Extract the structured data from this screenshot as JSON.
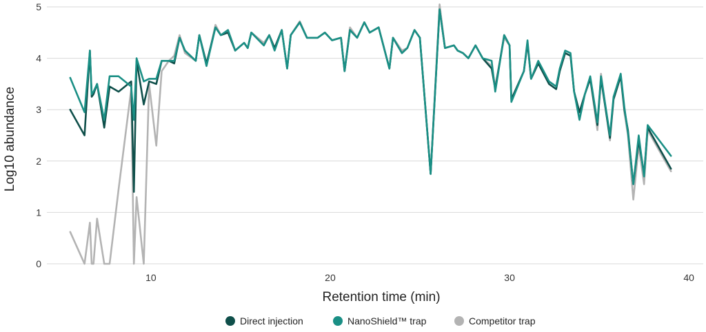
{
  "chart_data": {
    "type": "line",
    "xlabel": "Retention time (min)",
    "ylabel": "Log10 abundance",
    "xlim": [
      4.2,
      40.8
    ],
    "ylim": [
      0,
      5
    ],
    "xticks": [
      10,
      20,
      30,
      40
    ],
    "yticks": [
      0,
      1,
      2,
      3,
      4,
      5
    ],
    "grid": "horizontal",
    "legend_position": "bottom-center",
    "series": [
      {
        "name": "Direct injection",
        "color": "#0f4f4a",
        "points": [
          [
            5.5,
            3.0
          ],
          [
            6.3,
            2.5
          ],
          [
            6.6,
            4.15
          ],
          [
            6.7,
            3.25
          ],
          [
            6.8,
            3.3
          ],
          [
            7.0,
            3.5
          ],
          [
            7.4,
            2.65
          ],
          [
            7.7,
            3.45
          ],
          [
            8.2,
            3.35
          ],
          [
            8.9,
            3.55
          ],
          [
            9.05,
            1.4
          ],
          [
            9.2,
            3.95
          ],
          [
            9.6,
            3.1
          ],
          [
            9.9,
            3.55
          ],
          [
            10.3,
            3.5
          ],
          [
            10.6,
            3.95
          ],
          [
            11.0,
            3.95
          ],
          [
            11.3,
            3.9
          ],
          [
            11.6,
            4.4
          ],
          [
            11.9,
            4.15
          ],
          [
            12.5,
            3.95
          ],
          [
            12.7,
            4.45
          ],
          [
            13.1,
            3.9
          ],
          [
            13.6,
            4.6
          ],
          [
            13.9,
            4.45
          ],
          [
            14.3,
            4.5
          ],
          [
            14.7,
            4.15
          ],
          [
            15.2,
            4.3
          ],
          [
            15.4,
            4.2
          ],
          [
            15.6,
            4.5
          ],
          [
            16.3,
            4.25
          ],
          [
            16.6,
            4.45
          ],
          [
            16.9,
            4.2
          ],
          [
            17.3,
            4.55
          ],
          [
            17.6,
            3.8
          ],
          [
            17.8,
            4.45
          ],
          [
            18.3,
            4.7
          ],
          [
            18.7,
            4.4
          ],
          [
            19.3,
            4.4
          ],
          [
            19.7,
            4.5
          ],
          [
            20.1,
            4.35
          ],
          [
            20.6,
            4.4
          ],
          [
            20.8,
            3.75
          ],
          [
            21.1,
            4.55
          ],
          [
            21.5,
            4.4
          ],
          [
            21.9,
            4.7
          ],
          [
            22.2,
            4.5
          ],
          [
            22.7,
            4.6
          ],
          [
            23.3,
            3.8
          ],
          [
            23.5,
            4.4
          ],
          [
            24.0,
            4.1
          ],
          [
            24.3,
            4.2
          ],
          [
            24.7,
            4.55
          ],
          [
            25.0,
            4.4
          ],
          [
            25.6,
            1.75
          ],
          [
            26.1,
            4.95
          ],
          [
            26.4,
            4.2
          ],
          [
            26.9,
            4.25
          ],
          [
            27.1,
            4.15
          ],
          [
            27.4,
            4.1
          ],
          [
            27.7,
            4.0
          ],
          [
            28.1,
            4.25
          ],
          [
            28.5,
            4.0
          ],
          [
            29.0,
            3.8
          ],
          [
            29.2,
            3.4
          ],
          [
            29.7,
            4.45
          ],
          [
            30.0,
            4.25
          ],
          [
            30.1,
            3.2
          ],
          [
            30.8,
            3.75
          ],
          [
            31.0,
            4.3
          ],
          [
            31.2,
            3.6
          ],
          [
            31.6,
            3.9
          ],
          [
            32.2,
            3.5
          ],
          [
            32.6,
            3.4
          ],
          [
            32.8,
            3.75
          ],
          [
            33.1,
            4.1
          ],
          [
            33.4,
            4.05
          ],
          [
            33.6,
            3.35
          ],
          [
            33.9,
            2.95
          ],
          [
            34.2,
            3.3
          ],
          [
            34.5,
            3.6
          ],
          [
            34.9,
            2.7
          ],
          [
            35.1,
            3.6
          ],
          [
            35.6,
            2.45
          ],
          [
            35.8,
            3.2
          ],
          [
            36.2,
            3.65
          ],
          [
            36.4,
            3.0
          ],
          [
            36.6,
            2.6
          ],
          [
            36.9,
            1.55
          ],
          [
            37.2,
            2.4
          ],
          [
            37.5,
            1.75
          ],
          [
            37.7,
            2.65
          ],
          [
            39.0,
            1.85
          ]
        ]
      },
      {
        "name": "NanoShield™ trap",
        "color": "#1a8f85",
        "points": [
          [
            5.5,
            3.62
          ],
          [
            6.3,
            2.95
          ],
          [
            6.6,
            4.15
          ],
          [
            6.7,
            3.3
          ],
          [
            6.8,
            3.35
          ],
          [
            7.0,
            3.5
          ],
          [
            7.4,
            2.8
          ],
          [
            7.7,
            3.65
          ],
          [
            8.2,
            3.65
          ],
          [
            8.9,
            3.45
          ],
          [
            9.05,
            2.8
          ],
          [
            9.2,
            4.0
          ],
          [
            9.6,
            3.55
          ],
          [
            9.9,
            3.6
          ],
          [
            10.3,
            3.6
          ],
          [
            10.6,
            3.95
          ],
          [
            11.0,
            3.95
          ],
          [
            11.3,
            3.95
          ],
          [
            11.6,
            4.4
          ],
          [
            11.9,
            4.15
          ],
          [
            12.5,
            3.95
          ],
          [
            12.7,
            4.45
          ],
          [
            13.1,
            3.85
          ],
          [
            13.6,
            4.6
          ],
          [
            13.9,
            4.45
          ],
          [
            14.3,
            4.55
          ],
          [
            14.7,
            4.15
          ],
          [
            15.2,
            4.3
          ],
          [
            15.4,
            4.2
          ],
          [
            15.6,
            4.5
          ],
          [
            16.3,
            4.25
          ],
          [
            16.6,
            4.45
          ],
          [
            16.9,
            4.15
          ],
          [
            17.3,
            4.55
          ],
          [
            17.6,
            3.8
          ],
          [
            17.8,
            4.45
          ],
          [
            18.3,
            4.7
          ],
          [
            18.7,
            4.4
          ],
          [
            19.3,
            4.4
          ],
          [
            19.7,
            4.5
          ],
          [
            20.1,
            4.35
          ],
          [
            20.6,
            4.4
          ],
          [
            20.8,
            3.75
          ],
          [
            21.1,
            4.55
          ],
          [
            21.5,
            4.4
          ],
          [
            21.9,
            4.7
          ],
          [
            22.2,
            4.5
          ],
          [
            22.7,
            4.6
          ],
          [
            23.3,
            3.8
          ],
          [
            23.5,
            4.4
          ],
          [
            24.0,
            4.1
          ],
          [
            24.3,
            4.2
          ],
          [
            24.7,
            4.55
          ],
          [
            25.0,
            4.4
          ],
          [
            25.6,
            1.75
          ],
          [
            26.1,
            4.95
          ],
          [
            26.4,
            4.2
          ],
          [
            26.9,
            4.25
          ],
          [
            27.1,
            4.15
          ],
          [
            27.4,
            4.1
          ],
          [
            27.7,
            4.0
          ],
          [
            28.1,
            4.25
          ],
          [
            28.5,
            4.0
          ],
          [
            29.0,
            3.95
          ],
          [
            29.2,
            3.35
          ],
          [
            29.7,
            4.45
          ],
          [
            30.0,
            4.25
          ],
          [
            30.1,
            3.15
          ],
          [
            30.8,
            3.75
          ],
          [
            31.0,
            4.35
          ],
          [
            31.2,
            3.6
          ],
          [
            31.6,
            3.95
          ],
          [
            32.2,
            3.55
          ],
          [
            32.6,
            3.45
          ],
          [
            32.8,
            3.8
          ],
          [
            33.1,
            4.15
          ],
          [
            33.4,
            4.1
          ],
          [
            33.6,
            3.35
          ],
          [
            33.9,
            2.8
          ],
          [
            34.2,
            3.3
          ],
          [
            34.5,
            3.65
          ],
          [
            34.9,
            2.75
          ],
          [
            35.1,
            3.65
          ],
          [
            35.6,
            2.5
          ],
          [
            35.8,
            3.25
          ],
          [
            36.2,
            3.7
          ],
          [
            36.4,
            3.05
          ],
          [
            36.6,
            2.55
          ],
          [
            36.9,
            1.55
          ],
          [
            37.2,
            2.5
          ],
          [
            37.5,
            1.7
          ],
          [
            37.7,
            2.7
          ],
          [
            39.0,
            2.1
          ]
        ]
      },
      {
        "name": "Competitor trap",
        "color": "#b3b3b3",
        "points": [
          [
            5.5,
            0.62
          ],
          [
            6.3,
            0.0
          ],
          [
            6.6,
            0.8
          ],
          [
            6.7,
            0.0
          ],
          [
            6.8,
            0.0
          ],
          [
            7.0,
            0.88
          ],
          [
            7.4,
            0.0
          ],
          [
            7.7,
            0.0
          ],
          [
            8.2,
            1.45
          ],
          [
            8.9,
            3.4
          ],
          [
            9.05,
            0.0
          ],
          [
            9.2,
            1.3
          ],
          [
            9.6,
            0.0
          ],
          [
            9.9,
            3.5
          ],
          [
            10.3,
            2.3
          ],
          [
            10.6,
            3.75
          ],
          [
            11.0,
            3.95
          ],
          [
            11.3,
            4.05
          ],
          [
            11.6,
            4.45
          ],
          [
            11.9,
            4.1
          ],
          [
            12.5,
            3.95
          ],
          [
            12.7,
            4.45
          ],
          [
            13.1,
            3.85
          ],
          [
            13.6,
            4.65
          ],
          [
            13.9,
            4.45
          ],
          [
            14.3,
            4.55
          ],
          [
            14.7,
            4.15
          ],
          [
            15.2,
            4.3
          ],
          [
            15.4,
            4.2
          ],
          [
            15.6,
            4.5
          ],
          [
            16.3,
            4.3
          ],
          [
            16.6,
            4.45
          ],
          [
            16.9,
            4.2
          ],
          [
            17.3,
            4.55
          ],
          [
            17.6,
            3.8
          ],
          [
            17.8,
            4.45
          ],
          [
            18.3,
            4.72
          ],
          [
            18.7,
            4.4
          ],
          [
            19.3,
            4.4
          ],
          [
            19.7,
            4.5
          ],
          [
            20.1,
            4.35
          ],
          [
            20.6,
            4.4
          ],
          [
            20.8,
            3.75
          ],
          [
            21.1,
            4.6
          ],
          [
            21.5,
            4.4
          ],
          [
            21.9,
            4.7
          ],
          [
            22.2,
            4.5
          ],
          [
            22.7,
            4.6
          ],
          [
            23.3,
            3.8
          ],
          [
            23.5,
            4.4
          ],
          [
            24.0,
            4.15
          ],
          [
            24.3,
            4.2
          ],
          [
            24.7,
            4.55
          ],
          [
            25.0,
            4.4
          ],
          [
            25.6,
            1.75
          ],
          [
            26.1,
            5.05
          ],
          [
            26.4,
            4.2
          ],
          [
            26.9,
            4.25
          ],
          [
            27.1,
            4.15
          ],
          [
            27.4,
            4.1
          ],
          [
            27.7,
            4.0
          ],
          [
            28.1,
            4.25
          ],
          [
            28.5,
            4.0
          ],
          [
            29.0,
            3.85
          ],
          [
            29.2,
            3.45
          ],
          [
            29.7,
            4.4
          ],
          [
            30.0,
            4.25
          ],
          [
            30.1,
            3.2
          ],
          [
            30.8,
            3.75
          ],
          [
            31.0,
            4.3
          ],
          [
            31.2,
            3.6
          ],
          [
            31.6,
            3.9
          ],
          [
            32.2,
            3.55
          ],
          [
            32.6,
            3.45
          ],
          [
            32.8,
            3.75
          ],
          [
            33.1,
            4.1
          ],
          [
            33.4,
            4.05
          ],
          [
            33.6,
            3.35
          ],
          [
            33.9,
            2.9
          ],
          [
            34.2,
            3.3
          ],
          [
            34.5,
            3.6
          ],
          [
            34.9,
            2.6
          ],
          [
            35.1,
            3.7
          ],
          [
            35.6,
            2.4
          ],
          [
            35.8,
            3.2
          ],
          [
            36.2,
            3.65
          ],
          [
            36.4,
            2.95
          ],
          [
            36.6,
            2.5
          ],
          [
            36.9,
            1.25
          ],
          [
            37.2,
            2.3
          ],
          [
            37.5,
            1.55
          ],
          [
            37.7,
            2.6
          ],
          [
            39.0,
            1.8
          ]
        ]
      }
    ]
  }
}
